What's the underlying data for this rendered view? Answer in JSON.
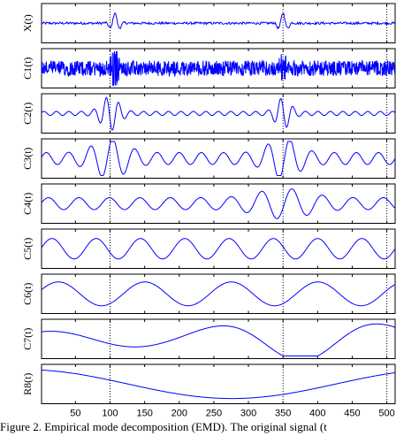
{
  "caption": "Figure 2. Empirical mode decomposition (EMD). The original signal (t",
  "chart_data": {
    "type": "line",
    "title": "",
    "xlabel": "",
    "xlim": [
      1,
      512
    ],
    "xticks": [
      50,
      100,
      150,
      200,
      250,
      300,
      350,
      400,
      450,
      500
    ],
    "vlines": [
      100,
      350,
      500
    ],
    "grid": "dotted vertical lines at x = 100, 350, 500",
    "line_color": "#0000ff",
    "panels": [
      {
        "ylabel": "X(t)",
        "kind": "signal",
        "bursts": [
          {
            "x": 107,
            "amp": 0.6,
            "w": 6
          },
          {
            "x": 350,
            "amp": 0.6,
            "w": 6
          }
        ],
        "noise": 0.07
      },
      {
        "ylabel": "C1(t)",
        "kind": "noise",
        "bursts": [
          {
            "x": 107,
            "amp": 0.95,
            "w": 4
          },
          {
            "x": 350,
            "amp": 0.55,
            "w": 4
          }
        ],
        "noise": 0.45
      },
      {
        "ylabel": "C2(t)",
        "kind": "imf",
        "period": 18,
        "base_amp": 0.12,
        "bursts": [
          {
            "x": 100,
            "amp": 0.9,
            "w": 12
          },
          {
            "x": 350,
            "amp": 0.8,
            "w": 10
          }
        ]
      },
      {
        "ylabel": "C3(t)",
        "kind": "imf",
        "period": 32,
        "base_amp": 0.35,
        "bursts": [
          {
            "x": 100,
            "amp": 0.85,
            "w": 22
          },
          {
            "x": 350,
            "amp": 0.9,
            "w": 20
          }
        ]
      },
      {
        "ylabel": "C4(t)",
        "kind": "imf",
        "period": 44,
        "base_amp": 0.35,
        "bursts": [
          {
            "x": 350,
            "amp": 0.55,
            "w": 35
          }
        ]
      },
      {
        "ylabel": "C5(t)",
        "kind": "imf",
        "period": 64,
        "base_amp": 0.6,
        "bursts": []
      },
      {
        "ylabel": "C6(t)",
        "kind": "imf",
        "period": 125,
        "base_amp": 0.7,
        "phase": 0.3,
        "bursts": []
      },
      {
        "ylabel": "C7(t)",
        "kind": "imf",
        "period": 240,
        "base_amp": 0.45,
        "phase": 1.2,
        "growth": [
          {
            "x": 385,
            "amp": 0.85,
            "w": 90
          }
        ],
        "bursts": []
      },
      {
        "ylabel": "R8(t)",
        "kind": "residue",
        "period": 600,
        "amp": 0.85,
        "phase": 0.25,
        "bursts": []
      }
    ]
  }
}
